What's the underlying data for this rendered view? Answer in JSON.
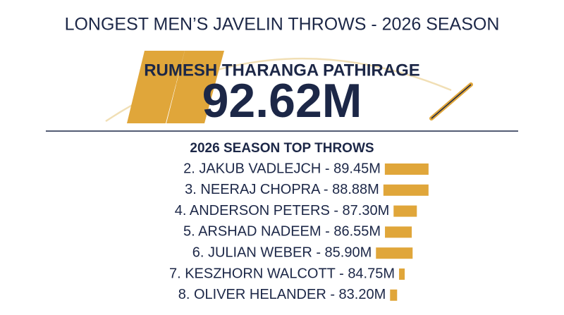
{
  "header": {
    "title": "LONGEST MEN’S JAVELIN THROWS - 2026 SEASON"
  },
  "leader": {
    "name": "RUMESH THARANGA PATHIRAGE",
    "mark": "92.62M"
  },
  "list": {
    "title": "2026 SEASON TOP THROWS",
    "rows": [
      {
        "text": "2. JAKUB VADLEJCH - 89.45M"
      },
      {
        "text": "3. NEERAJ CHOPRA - 88.88M"
      },
      {
        "text": "4. ANDERSON PETERS - 87.30M"
      },
      {
        "text": "5. ARSHAD NADEEM - 86.55M"
      },
      {
        "text": "6. JULIAN WEBER - 85.90M"
      },
      {
        "text": "7. KESZHORN WALCOTT - 84.75M"
      },
      {
        "text": "8. OLIVER HELANDER - 83.20M"
      }
    ]
  }
}
